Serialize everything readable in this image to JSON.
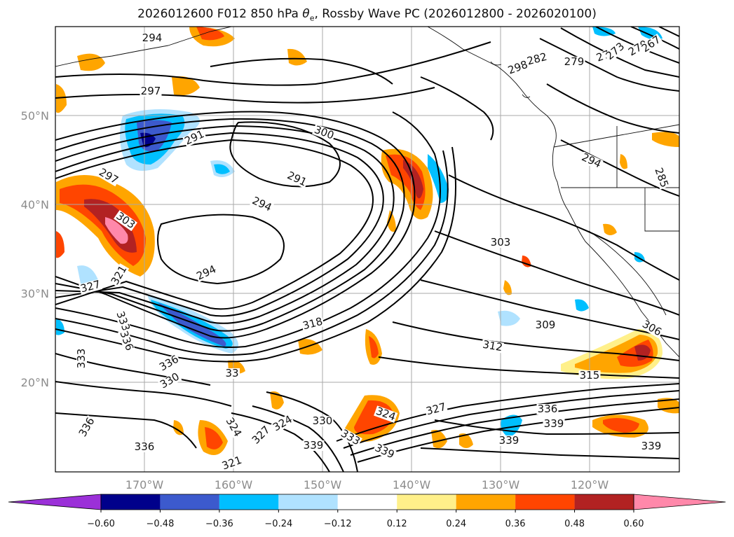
{
  "title_prefix": "2026012600 F012 850 hPa ",
  "title_symbol": "θ",
  "title_subscript": "e",
  "title_suffix": ", Rossby Wave PC (2026012800 - 2026020100)",
  "lat_labels": [
    "50°N",
    "40°N",
    "30°N",
    "20°N"
  ],
  "lon_labels": [
    "170°W",
    "160°W",
    "150°W",
    "140°W",
    "130°W",
    "120°W"
  ],
  "colorbar": {
    "colors": [
      "#9b30d8",
      "#00008b",
      "#3c5acd",
      "#00bfff",
      "#b0e2ff",
      "#ffffff",
      "#fff08a",
      "#ffa500",
      "#ff4500",
      "#b22222",
      "#ff88aa"
    ],
    "tick_labels": [
      "−0.60",
      "−0.48",
      "−0.36",
      "−0.24",
      "−0.12",
      "0.12",
      "0.24",
      "0.36",
      "0.48",
      "0.60"
    ]
  },
  "contour_labels": [
    {
      "text": "294"
    },
    {
      "text": "297"
    },
    {
      "text": "291"
    },
    {
      "text": "300"
    },
    {
      "text": "291"
    },
    {
      "text": "294"
    },
    {
      "text": "297"
    },
    {
      "text": "303"
    },
    {
      "text": "321"
    },
    {
      "text": "294"
    },
    {
      "text": "327"
    },
    {
      "text": "333"
    },
    {
      "text": "336"
    },
    {
      "text": "333"
    },
    {
      "text": "336"
    },
    {
      "text": "330"
    },
    {
      "text": "33"
    },
    {
      "text": "318"
    },
    {
      "text": "303"
    },
    {
      "text": "309"
    },
    {
      "text": "312"
    },
    {
      "text": "315"
    },
    {
      "text": "306"
    },
    {
      "text": "282"
    },
    {
      "text": "279"
    },
    {
      "text": "276"
    },
    {
      "text": "273"
    },
    {
      "text": "270"
    },
    {
      "text": "267"
    },
    {
      "text": "298"
    },
    {
      "text": "294"
    },
    {
      "text": "285"
    },
    {
      "text": "336"
    },
    {
      "text": "336"
    },
    {
      "text": "324"
    },
    {
      "text": "327"
    },
    {
      "text": "324"
    },
    {
      "text": "330"
    },
    {
      "text": "333"
    },
    {
      "text": "339"
    },
    {
      "text": "339"
    },
    {
      "text": "321"
    },
    {
      "text": "327"
    },
    {
      "text": "324"
    },
    {
      "text": "336"
    },
    {
      "text": "339"
    },
    {
      "text": "339"
    },
    {
      "text": "339"
    }
  ]
}
